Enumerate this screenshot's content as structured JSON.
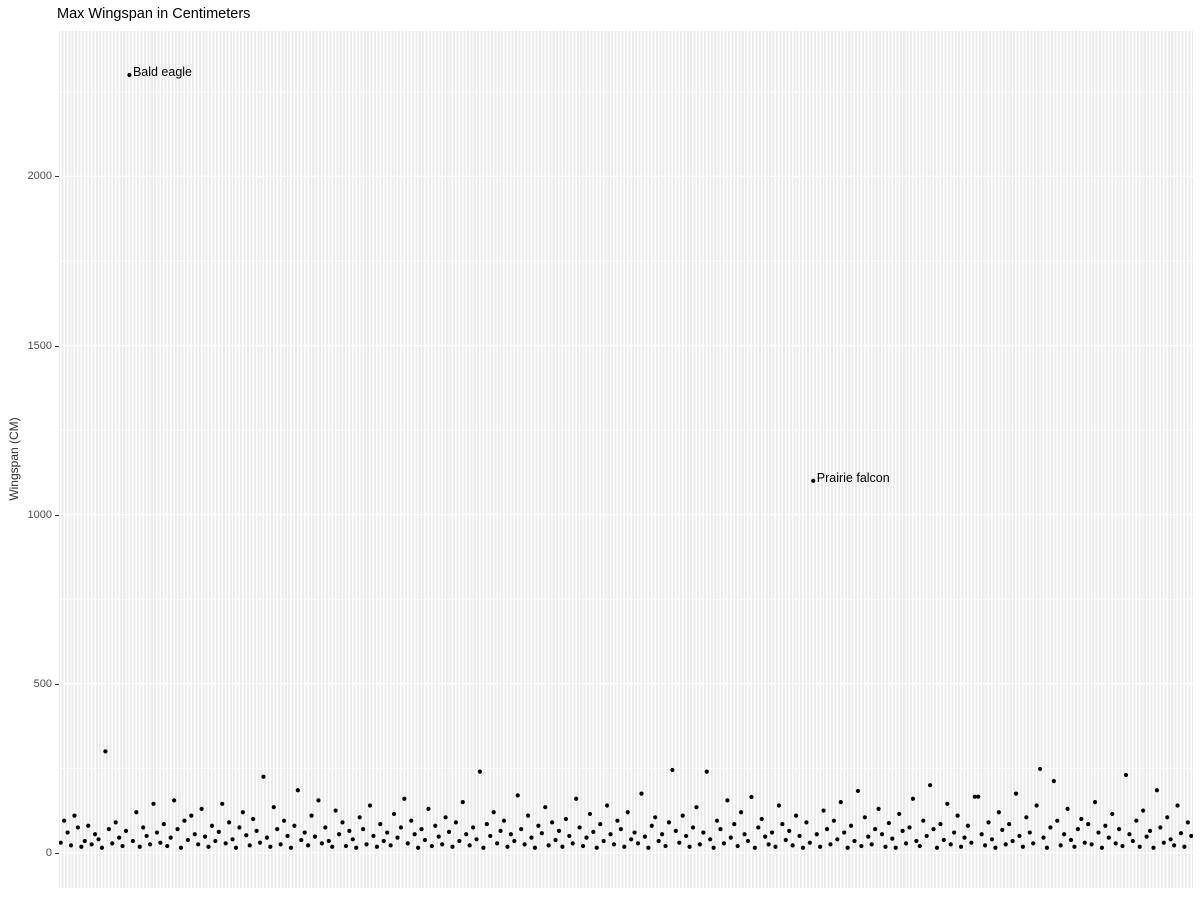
{
  "chart_data": {
    "type": "scatter",
    "title": "Max Wingspan in Centimeters",
    "ylabel": "Wingspan (CM)",
    "xlabel": "",
    "x_axis_note": "one category per bird species, x tick labels hidden",
    "ylim": [
      -104,
      2430
    ],
    "yticks_major": [
      0,
      500,
      1000,
      1500,
      2000
    ],
    "yticks_minor": [
      250,
      750,
      1250,
      1750,
      2250
    ],
    "grid": "white major and minor gridlines on gray panel, legend none",
    "n_points": 330,
    "values": [
      30,
      95,
      60,
      22,
      110,
      75,
      18,
      35,
      80,
      25,
      55,
      40,
      15,
      300,
      70,
      28,
      90,
      45,
      20,
      65,
      2300,
      35,
      120,
      18,
      75,
      50,
      25,
      145,
      60,
      30,
      85,
      20,
      45,
      155,
      70,
      15,
      95,
      38,
      110,
      55,
      25,
      130,
      48,
      18,
      80,
      35,
      62,
      145,
      28,
      90,
      40,
      15,
      75,
      120,
      52,
      22,
      100,
      65,
      30,
      225,
      45,
      18,
      135,
      70,
      25,
      95,
      50,
      15,
      80,
      185,
      38,
      60,
      22,
      110,
      48,
      155,
      28,
      75,
      35,
      18,
      125,
      55,
      90,
      20,
      65,
      40,
      15,
      105,
      70,
      25,
      140,
      50,
      18,
      85,
      35,
      60,
      22,
      115,
      45,
      75,
      160,
      28,
      95,
      55,
      15,
      70,
      38,
      130,
      20,
      80,
      48,
      25,
      105,
      62,
      18,
      90,
      35,
      150,
      55,
      22,
      75,
      40,
      240,
      15,
      85,
      50,
      120,
      28,
      65,
      95,
      18,
      55,
      35,
      170,
      70,
      25,
      110,
      45,
      15,
      80,
      58,
      135,
      22,
      90,
      38,
      65,
      18,
      100,
      50,
      28,
      160,
      75,
      20,
      45,
      115,
      62,
      15,
      85,
      35,
      140,
      55,
      25,
      95,
      70,
      18,
      120,
      40,
      60,
      28,
      175,
      48,
      15,
      80,
      105,
      35,
      55,
      20,
      90,
      245,
      65,
      30,
      110,
      50,
      18,
      75,
      135,
      25,
      60,
      240,
      40,
      15,
      95,
      70,
      28,
      155,
      45,
      85,
      20,
      120,
      55,
      35,
      165,
      15,
      75,
      100,
      48,
      25,
      60,
      18,
      140,
      85,
      38,
      65,
      22,
      110,
      50,
      15,
      90,
      30,
      1100,
      55,
      18,
      125,
      70,
      25,
      95,
      40,
      150,
      60,
      15,
      80,
      35,
      183,
      20,
      105,
      48,
      25,
      70,
      130,
      55,
      18,
      88,
      42,
      15,
      115,
      65,
      28,
      75,
      160,
      35,
      20,
      95,
      50,
      200,
      70,
      15,
      85,
      38,
      145,
      25,
      60,
      110,
      18,
      45,
      80,
      30,
      166,
      166,
      55,
      22,
      90,
      40,
      15,
      120,
      68,
      25,
      85,
      35,
      175,
      50,
      18,
      105,
      60,
      28,
      140,
      248,
      45,
      15,
      75,
      212,
      95,
      22,
      55,
      130,
      38,
      18,
      70,
      100,
      30,
      85,
      25,
      150,
      60,
      15,
      80,
      45,
      115,
      28,
      70,
      20,
      230,
      55,
      35,
      95,
      18,
      125,
      48,
      65,
      15,
      185,
      75,
      30,
      105,
      40,
      22,
      140,
      58,
      18,
      90,
      50
    ],
    "annotations": [
      {
        "label": "Bald eagle",
        "index": 20,
        "value": 2300
      },
      {
        "label": "Prairie falcon",
        "index": 219,
        "value": 1100
      }
    ]
  },
  "colors": {
    "panel_bg": "#EBEBEB",
    "gridline": "#FFFFFF",
    "point": "#000000",
    "tick_label": "#4D4D4D",
    "tick_mark": "#333333",
    "axis_title": "#2B2B2B",
    "title": "#000000",
    "annotation_text": "#000000"
  }
}
